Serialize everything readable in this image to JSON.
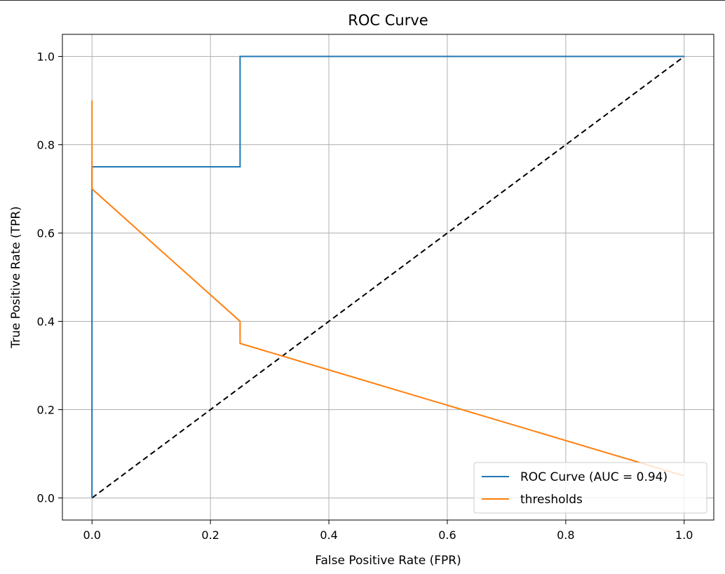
{
  "chart_data": {
    "type": "line",
    "title": "ROC Curve",
    "xlabel": "False Positive Rate (FPR)",
    "ylabel": "True Positive Rate (TPR)",
    "xlim": [
      -0.05,
      1.05
    ],
    "ylim": [
      -0.05,
      1.05
    ],
    "xticks": [
      0.0,
      0.2,
      0.4,
      0.6,
      0.8,
      1.0
    ],
    "xtick_labels": [
      "0.0",
      "0.2",
      "0.4",
      "0.6",
      "0.8",
      "1.0"
    ],
    "yticks": [
      0.0,
      0.2,
      0.4,
      0.6,
      0.8,
      1.0
    ],
    "ytick_labels": [
      "0.0",
      "0.2",
      "0.4",
      "0.6",
      "0.8",
      "1.0"
    ],
    "grid": true,
    "legend_position": "lower-right",
    "series": [
      {
        "name": "ROC Curve (AUC = 0.94)",
        "color": "#1f77b4",
        "style": "solid",
        "x": [
          0.0,
          0.0,
          0.0,
          0.25,
          0.25,
          1.0
        ],
        "y": [
          0.0,
          0.7,
          0.75,
          0.75,
          1.0,
          1.0
        ]
      },
      {
        "name": "thresholds",
        "color": "#ff7f0e",
        "style": "solid",
        "x": [
          0.0,
          0.0,
          0.0,
          0.25,
          0.25,
          1.0
        ],
        "y": [
          0.9,
          0.75,
          0.7,
          0.4,
          0.35,
          0.05
        ]
      },
      {
        "color": "#000000",
        "style": "dashed",
        "x": [
          0.0,
          1.0
        ],
        "y": [
          0.0,
          1.0
        ]
      }
    ]
  }
}
